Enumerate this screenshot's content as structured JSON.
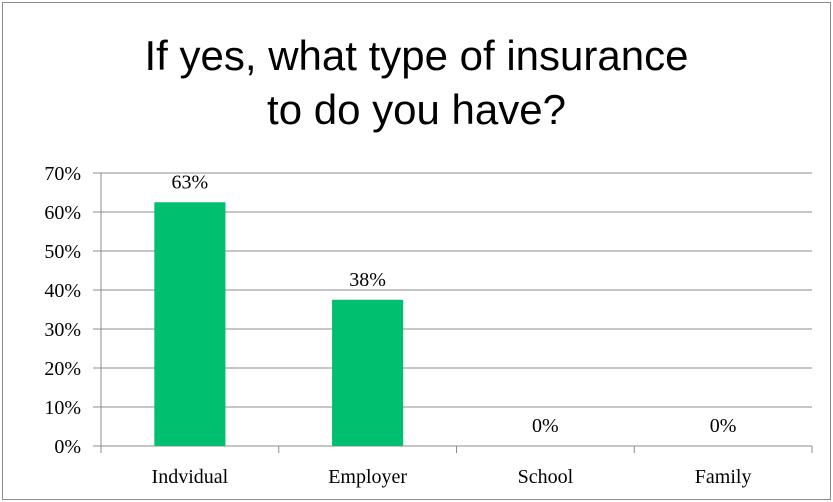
{
  "chart_data": {
    "type": "bar",
    "title_lines": [
      "If yes, what type of insurance",
      "to do you have?"
    ],
    "categories": [
      "Indvidual",
      "Employer",
      "School",
      "Family"
    ],
    "values": [
      62.5,
      37.5,
      0,
      0
    ],
    "data_labels": [
      "63%",
      "38%",
      "0%",
      "0%"
    ],
    "ytick_labels": [
      "0%",
      "10%",
      "20%",
      "30%",
      "40%",
      "50%",
      "60%",
      "70%"
    ],
    "ylim": [
      0,
      70
    ],
    "ystep": 10,
    "grid": true,
    "legend": "none",
    "bar_color": "#00bf6f"
  }
}
